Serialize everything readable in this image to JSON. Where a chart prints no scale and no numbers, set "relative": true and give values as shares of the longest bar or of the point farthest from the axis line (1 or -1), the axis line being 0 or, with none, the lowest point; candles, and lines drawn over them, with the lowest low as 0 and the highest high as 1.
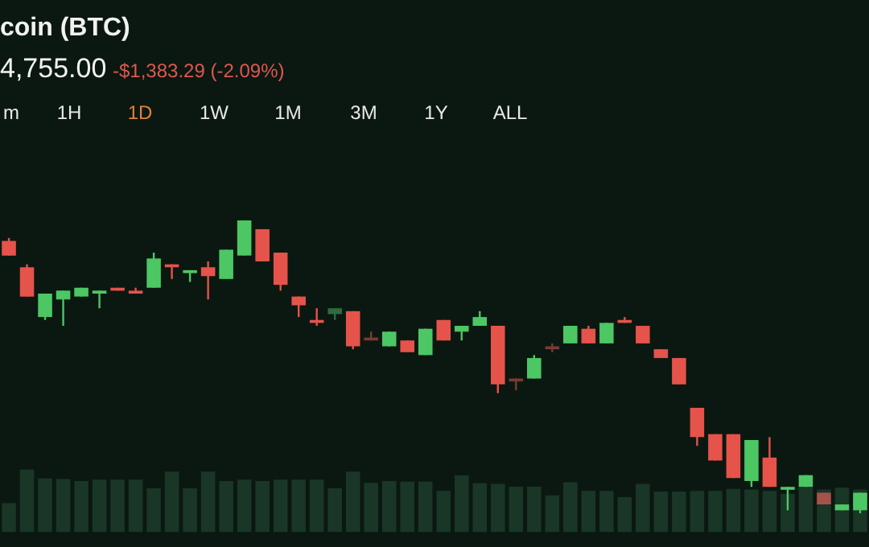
{
  "chart_data": {
    "type": "candlestick",
    "title": "coin (BTC)",
    "subtitle": "4,755.00",
    "annotations": [
      "-$1,383.29 (-2.09%)",
      "m",
      "1H",
      "1D",
      "1W",
      "1M",
      "3M",
      "1Y",
      "ALL"
    ],
    "relative": true,
    "categories": [
      null,
      null,
      null,
      null,
      null,
      null,
      null,
      null,
      null,
      null,
      null,
      null,
      null,
      null,
      null,
      null,
      null,
      null,
      null,
      null,
      null,
      null,
      null,
      null,
      null,
      null,
      null,
      null,
      null,
      null,
      null,
      null,
      null,
      null,
      null,
      null,
      null,
      null,
      null,
      null,
      null,
      null,
      null,
      null,
      null,
      null,
      null,
      null
    ],
    "ohlc": [
      [
        0.93,
        0.94,
        0.88,
        0.88
      ],
      [
        0.84,
        0.85,
        0.74,
        0.74
      ],
      [
        0.67,
        0.75,
        0.66,
        0.75
      ],
      [
        0.73,
        0.76,
        0.64,
        0.76
      ],
      [
        0.74,
        0.77,
        0.74,
        0.77
      ],
      [
        0.75,
        0.76,
        0.7,
        0.76
      ],
      [
        0.77,
        0.77,
        0.76,
        0.76
      ],
      [
        0.76,
        0.77,
        0.75,
        0.75
      ],
      [
        0.77,
        0.89,
        0.77,
        0.87
      ],
      [
        0.85,
        0.85,
        0.8,
        0.84
      ],
      [
        0.82,
        0.83,
        0.79,
        0.83
      ],
      [
        0.84,
        0.86,
        0.73,
        0.81
      ],
      [
        0.8,
        0.9,
        0.8,
        0.9
      ],
      [
        0.88,
        1.0,
        0.88,
        1.0
      ],
      [
        0.97,
        0.97,
        0.86,
        0.86
      ],
      [
        0.89,
        0.89,
        0.76,
        0.78
      ],
      [
        0.74,
        0.74,
        0.67,
        0.71
      ],
      [
        0.66,
        0.7,
        0.64,
        0.65
      ],
      [
        0.68,
        0.7,
        0.66,
        0.7
      ],
      [
        0.69,
        0.69,
        0.56,
        0.57
      ],
      [
        0.6,
        0.62,
        0.59,
        0.59
      ],
      [
        0.57,
        0.62,
        0.57,
        0.62
      ],
      [
        0.59,
        0.59,
        0.55,
        0.55
      ],
      [
        0.54,
        0.63,
        0.54,
        0.63
      ],
      [
        0.66,
        0.66,
        0.59,
        0.59
      ],
      [
        0.62,
        0.64,
        0.59,
        0.64
      ],
      [
        0.64,
        0.69,
        0.64,
        0.67
      ],
      [
        0.64,
        0.64,
        0.41,
        0.44
      ],
      [
        0.46,
        0.46,
        0.42,
        0.45
      ],
      [
        0.46,
        0.54,
        0.46,
        0.53
      ],
      [
        0.57,
        0.58,
        0.55,
        0.56
      ],
      [
        0.58,
        0.64,
        0.58,
        0.64
      ],
      [
        0.63,
        0.64,
        0.58,
        0.58
      ],
      [
        0.58,
        0.65,
        0.58,
        0.65
      ],
      [
        0.66,
        0.67,
        0.65,
        0.65
      ],
      [
        0.64,
        0.64,
        0.58,
        0.58
      ],
      [
        0.56,
        0.56,
        0.53,
        0.53
      ],
      [
        0.53,
        0.53,
        0.44,
        0.44
      ],
      [
        0.36,
        0.36,
        0.23,
        0.26
      ],
      [
        0.27,
        0.27,
        0.18,
        0.18
      ],
      [
        0.27,
        0.27,
        0.12,
        0.12
      ],
      [
        0.11,
        0.25,
        0.09,
        0.25
      ],
      [
        0.19,
        0.26,
        0.09,
        0.09
      ],
      [
        0.08,
        0.09,
        0.01,
        0.09
      ],
      [
        0.09,
        0.13,
        0.09,
        0.13
      ],
      [
        0.07,
        0.07,
        0.03,
        0.03
      ],
      [
        0.01,
        0.03,
        0.01,
        0.03
      ],
      [
        0.01,
        0.07,
        0,
        0.07
      ]
    ],
    "colors": [
      "#e5534b",
      "#e5534b",
      "#4cc764",
      "#4cc764",
      "#4cc764",
      "#4cc764",
      "#e5534b",
      "#e5534b",
      "#4cc764",
      "#e5534b",
      "#4cc764",
      "#e5534b",
      "#4cc764",
      "#4cc764",
      "#e5534b",
      "#e5534b",
      "#e5534b",
      "#e5534b",
      "#2f6b3c",
      "#e5534b",
      "#7a3a33",
      "#4cc764",
      "#e5534b",
      "#4cc764",
      "#e5534b",
      "#4cc764",
      "#4cc764",
      "#e5534b",
      "#7a3a33",
      "#4cc764",
      "#7a3a33",
      "#4cc764",
      "#e5534b",
      "#4cc764",
      "#e5534b",
      "#e5534b",
      "#e5534b",
      "#e5534b",
      "#e5534b",
      "#e5534b",
      "#e5534b",
      "#4cc764",
      "#e5534b",
      "#4cc764",
      "#4cc764",
      "#a5524a",
      "#4cc764",
      "#4cc764"
    ],
    "series": [
      {
        "type": "bar",
        "color": "#1a3626",
        "base": [
          -0.064,
          -0.064,
          -0.064,
          -0.064,
          -0.064,
          -0.064,
          -0.064,
          -0.064,
          -0.064,
          -0.064,
          -0.064,
          -0.064,
          -0.064,
          -0.064,
          -0.064,
          -0.064,
          -0.064,
          -0.064,
          -0.064,
          -0.064,
          -0.064,
          -0.064,
          -0.064,
          -0.064,
          -0.064,
          -0.064,
          -0.064,
          -0.064,
          -0.064,
          -0.064,
          -0.064,
          -0.064,
          -0.064,
          -0.064,
          -0.064,
          -0.064,
          -0.064,
          -0.064,
          -0.064,
          -0.064,
          -0.064,
          -0.064,
          -0.064,
          -0.064,
          -0.064,
          -0.064,
          -0.064,
          -0.064
        ],
        "values": [
          0.098,
          0.213,
          0.183,
          0.181,
          0.174,
          0.179,
          0.179,
          0.179,
          0.149,
          0.206,
          0.149,
          0.206,
          0.174,
          0.179,
          0.174,
          0.179,
          0.179,
          0.179,
          0.149,
          0.206,
          0.168,
          0.174,
          0.172,
          0.172,
          0.14,
          0.193,
          0.166,
          0.164,
          0.155,
          0.155,
          0.125,
          0.17,
          0.14,
          0.14,
          0.119,
          0.164,
          0.138,
          0.138,
          0.14,
          0.14,
          0.147,
          0.145,
          0.14,
          0.13,
          0.153,
          0.145,
          0.151,
          0.145
        ]
      }
    ]
  }
}
